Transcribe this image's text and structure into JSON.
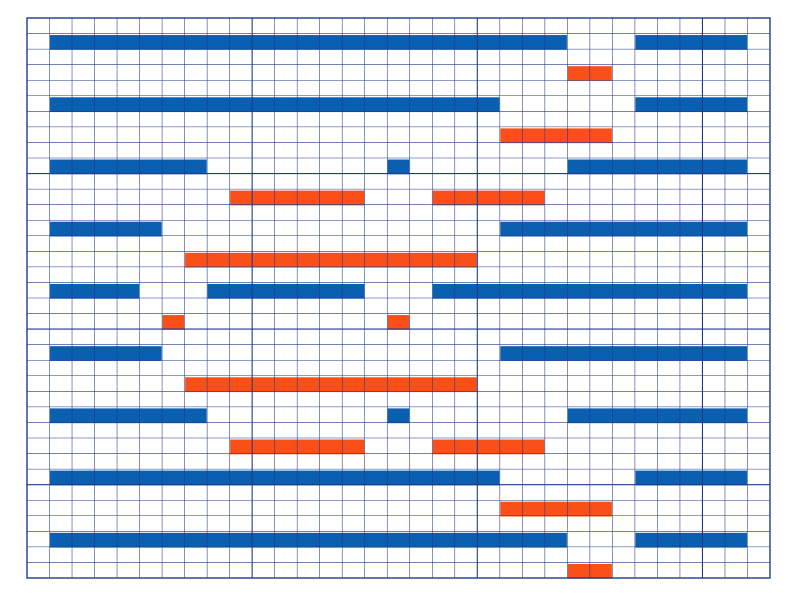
{
  "colors": {
    "background": "#ffffff",
    "grid_line": "#1f3a8a",
    "blue_bar": "#0a5fb0",
    "orange_bar": "#fb4f1a"
  },
  "grid": {
    "columns": 33,
    "rows": 36,
    "major_every_columns": 10,
    "major_every_rows": 10
  },
  "bars": [
    {
      "row": 1,
      "start": 1,
      "end": 24,
      "color": "blue"
    },
    {
      "row": 1,
      "start": 27,
      "end": 32,
      "color": "blue"
    },
    {
      "row": 3,
      "start": 24,
      "end": 26,
      "color": "orange"
    },
    {
      "row": 5,
      "start": 1,
      "end": 21,
      "color": "blue"
    },
    {
      "row": 5,
      "start": 27,
      "end": 32,
      "color": "blue"
    },
    {
      "row": 7,
      "start": 21,
      "end": 26,
      "color": "orange"
    },
    {
      "row": 9,
      "start": 1,
      "end": 8,
      "color": "blue"
    },
    {
      "row": 9,
      "start": 16,
      "end": 17,
      "color": "blue"
    },
    {
      "row": 9,
      "start": 24,
      "end": 32,
      "color": "blue"
    },
    {
      "row": 11,
      "start": 9,
      "end": 15,
      "color": "orange"
    },
    {
      "row": 11,
      "start": 18,
      "end": 23,
      "color": "orange"
    },
    {
      "row": 13,
      "start": 1,
      "end": 6,
      "color": "blue"
    },
    {
      "row": 13,
      "start": 21,
      "end": 32,
      "color": "blue"
    },
    {
      "row": 15,
      "start": 7,
      "end": 20,
      "color": "orange"
    },
    {
      "row": 17,
      "start": 1,
      "end": 5,
      "color": "blue"
    },
    {
      "row": 17,
      "start": 8,
      "end": 15,
      "color": "blue"
    },
    {
      "row": 17,
      "start": 18,
      "end": 32,
      "color": "blue"
    },
    {
      "row": 19,
      "start": 6,
      "end": 7,
      "color": "orange"
    },
    {
      "row": 19,
      "start": 16,
      "end": 17,
      "color": "orange"
    },
    {
      "row": 21,
      "start": 1,
      "end": 6,
      "color": "blue"
    },
    {
      "row": 21,
      "start": 21,
      "end": 32,
      "color": "blue"
    },
    {
      "row": 23,
      "start": 7,
      "end": 20,
      "color": "orange"
    },
    {
      "row": 25,
      "start": 1,
      "end": 8,
      "color": "blue"
    },
    {
      "row": 25,
      "start": 16,
      "end": 17,
      "color": "blue"
    },
    {
      "row": 25,
      "start": 24,
      "end": 32,
      "color": "blue"
    },
    {
      "row": 27,
      "start": 9,
      "end": 15,
      "color": "orange"
    },
    {
      "row": 27,
      "start": 18,
      "end": 23,
      "color": "orange"
    },
    {
      "row": 29,
      "start": 1,
      "end": 21,
      "color": "blue"
    },
    {
      "row": 29,
      "start": 27,
      "end": 32,
      "color": "blue"
    },
    {
      "row": 31,
      "start": 21,
      "end": 26,
      "color": "orange"
    },
    {
      "row": 33,
      "start": 1,
      "end": 24,
      "color": "blue"
    },
    {
      "row": 33,
      "start": 27,
      "end": 32,
      "color": "blue"
    },
    {
      "row": 35,
      "start": 24,
      "end": 26,
      "color": "orange"
    }
  ]
}
